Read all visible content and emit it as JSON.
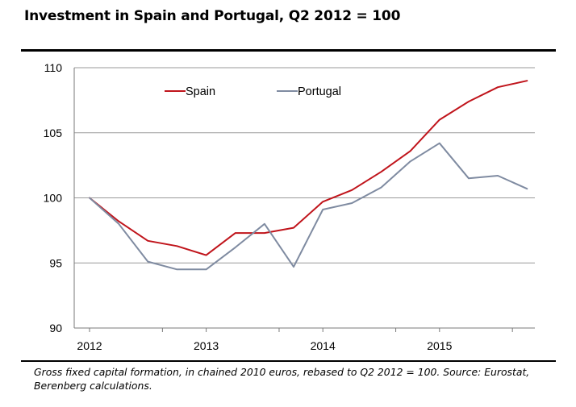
{
  "title": "Investment in Spain and Portugal, Q2 2012 = 100",
  "caption": "Gross fixed capital formation, in chained 2010 euros, rebased to Q2 2012 = 100. Source: Eurostat, Berenberg calculations.",
  "colors": {
    "Spain": "#c0141b",
    "Portugal": "#7f8ba1",
    "grid": "#9a9a9a",
    "axis": "#7a7a7a"
  },
  "chart_data": {
    "type": "line",
    "title": "Investment in Spain and Portugal, Q2 2012 = 100",
    "xlabel": "",
    "ylabel": "",
    "ylim": [
      90,
      110
    ],
    "yticks": [
      90,
      95,
      100,
      105,
      110
    ],
    "grid": true,
    "legend": "top",
    "x": [
      "2012 Q2",
      "2012 Q3",
      "2012 Q4",
      "2013 Q1",
      "2013 Q2",
      "2013 Q3",
      "2013 Q4",
      "2014 Q1",
      "2014 Q2",
      "2014 Q3",
      "2014 Q4",
      "2015 Q1",
      "2015 Q2",
      "2015 Q3",
      "2015 Q4",
      "2016 Q1"
    ],
    "xtick_labels": [
      {
        "label": "2012",
        "index": 0
      },
      {
        "label": "2013",
        "index": 4
      },
      {
        "label": "2014",
        "index": 8
      },
      {
        "label": "2015",
        "index": 12
      }
    ],
    "series": [
      {
        "name": "Spain",
        "values": [
          100.0,
          98.2,
          96.7,
          96.3,
          95.6,
          97.3,
          97.3,
          97.7,
          99.7,
          100.6,
          102.0,
          103.6,
          106.0,
          107.4,
          108.5,
          109.0
        ]
      },
      {
        "name": "Portugal",
        "values": [
          100.0,
          98.0,
          95.1,
          94.5,
          94.5,
          96.2,
          98.0,
          94.7,
          99.1,
          99.6,
          100.8,
          102.8,
          104.2,
          101.5,
          101.7,
          100.7
        ]
      }
    ]
  }
}
